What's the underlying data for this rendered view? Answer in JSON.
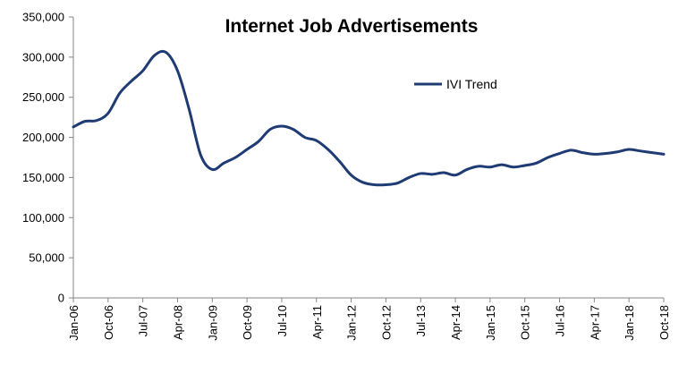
{
  "chart_data": {
    "type": "line",
    "title": "Internet Job Advertisements",
    "xlabel": "",
    "ylabel": "",
    "ylim": [
      0,
      350000
    ],
    "yticks": [
      0,
      50000,
      100000,
      150000,
      200000,
      250000,
      300000,
      350000
    ],
    "ytick_labels": [
      "0",
      "50,000",
      "100,000",
      "150,000",
      "200,000",
      "250,000",
      "300,000",
      "350,000"
    ],
    "xtick_labels": [
      "Jan-06",
      "Oct-06",
      "Jul-07",
      "Apr-08",
      "Jan-09",
      "Oct-09",
      "Jul-10",
      "Apr-11",
      "Jan-12",
      "Oct-12",
      "Jul-13",
      "Apr-14",
      "Jan-15",
      "Oct-15",
      "Jul-16",
      "Apr-17",
      "Jan-18",
      "Oct-18"
    ],
    "grid": false,
    "legend_position": "top-center",
    "series": [
      {
        "name": "IVI Trend",
        "color": "#1f3b73",
        "x": [
          "Jan-06",
          "Apr-06",
          "Jul-06",
          "Oct-06",
          "Jan-07",
          "Apr-07",
          "Jul-07",
          "Oct-07",
          "Jan-08",
          "Apr-08",
          "Jul-08",
          "Oct-08",
          "Jan-09",
          "Apr-09",
          "Jul-09",
          "Oct-09",
          "Jan-10",
          "Apr-10",
          "Jul-10",
          "Oct-10",
          "Jan-11",
          "Apr-11",
          "Jul-11",
          "Oct-11",
          "Jan-12",
          "Apr-12",
          "Jul-12",
          "Oct-12",
          "Jan-13",
          "Apr-13",
          "Jul-13",
          "Oct-13",
          "Jan-14",
          "Apr-14",
          "Jul-14",
          "Oct-14",
          "Jan-15",
          "Apr-15",
          "Jul-15",
          "Oct-15",
          "Jan-16",
          "Apr-16",
          "Jul-16",
          "Oct-16",
          "Jan-17",
          "Apr-17",
          "Jul-17",
          "Oct-17",
          "Jan-18",
          "Apr-18",
          "Jul-18",
          "Oct-18"
        ],
        "values": [
          213000,
          220000,
          221000,
          230000,
          255000,
          270000,
          283000,
          302000,
          306000,
          283000,
          235000,
          178000,
          160000,
          168000,
          175000,
          185000,
          195000,
          210000,
          214000,
          210000,
          200000,
          196000,
          185000,
          170000,
          153000,
          144000,
          141000,
          141000,
          143000,
          150000,
          155000,
          154000,
          156000,
          153000,
          160000,
          164000,
          163000,
          166000,
          163000,
          165000,
          168000,
          175000,
          180000,
          184000,
          181000,
          179000,
          180000,
          182000,
          185000,
          183000,
          181000,
          179000
        ]
      }
    ]
  }
}
